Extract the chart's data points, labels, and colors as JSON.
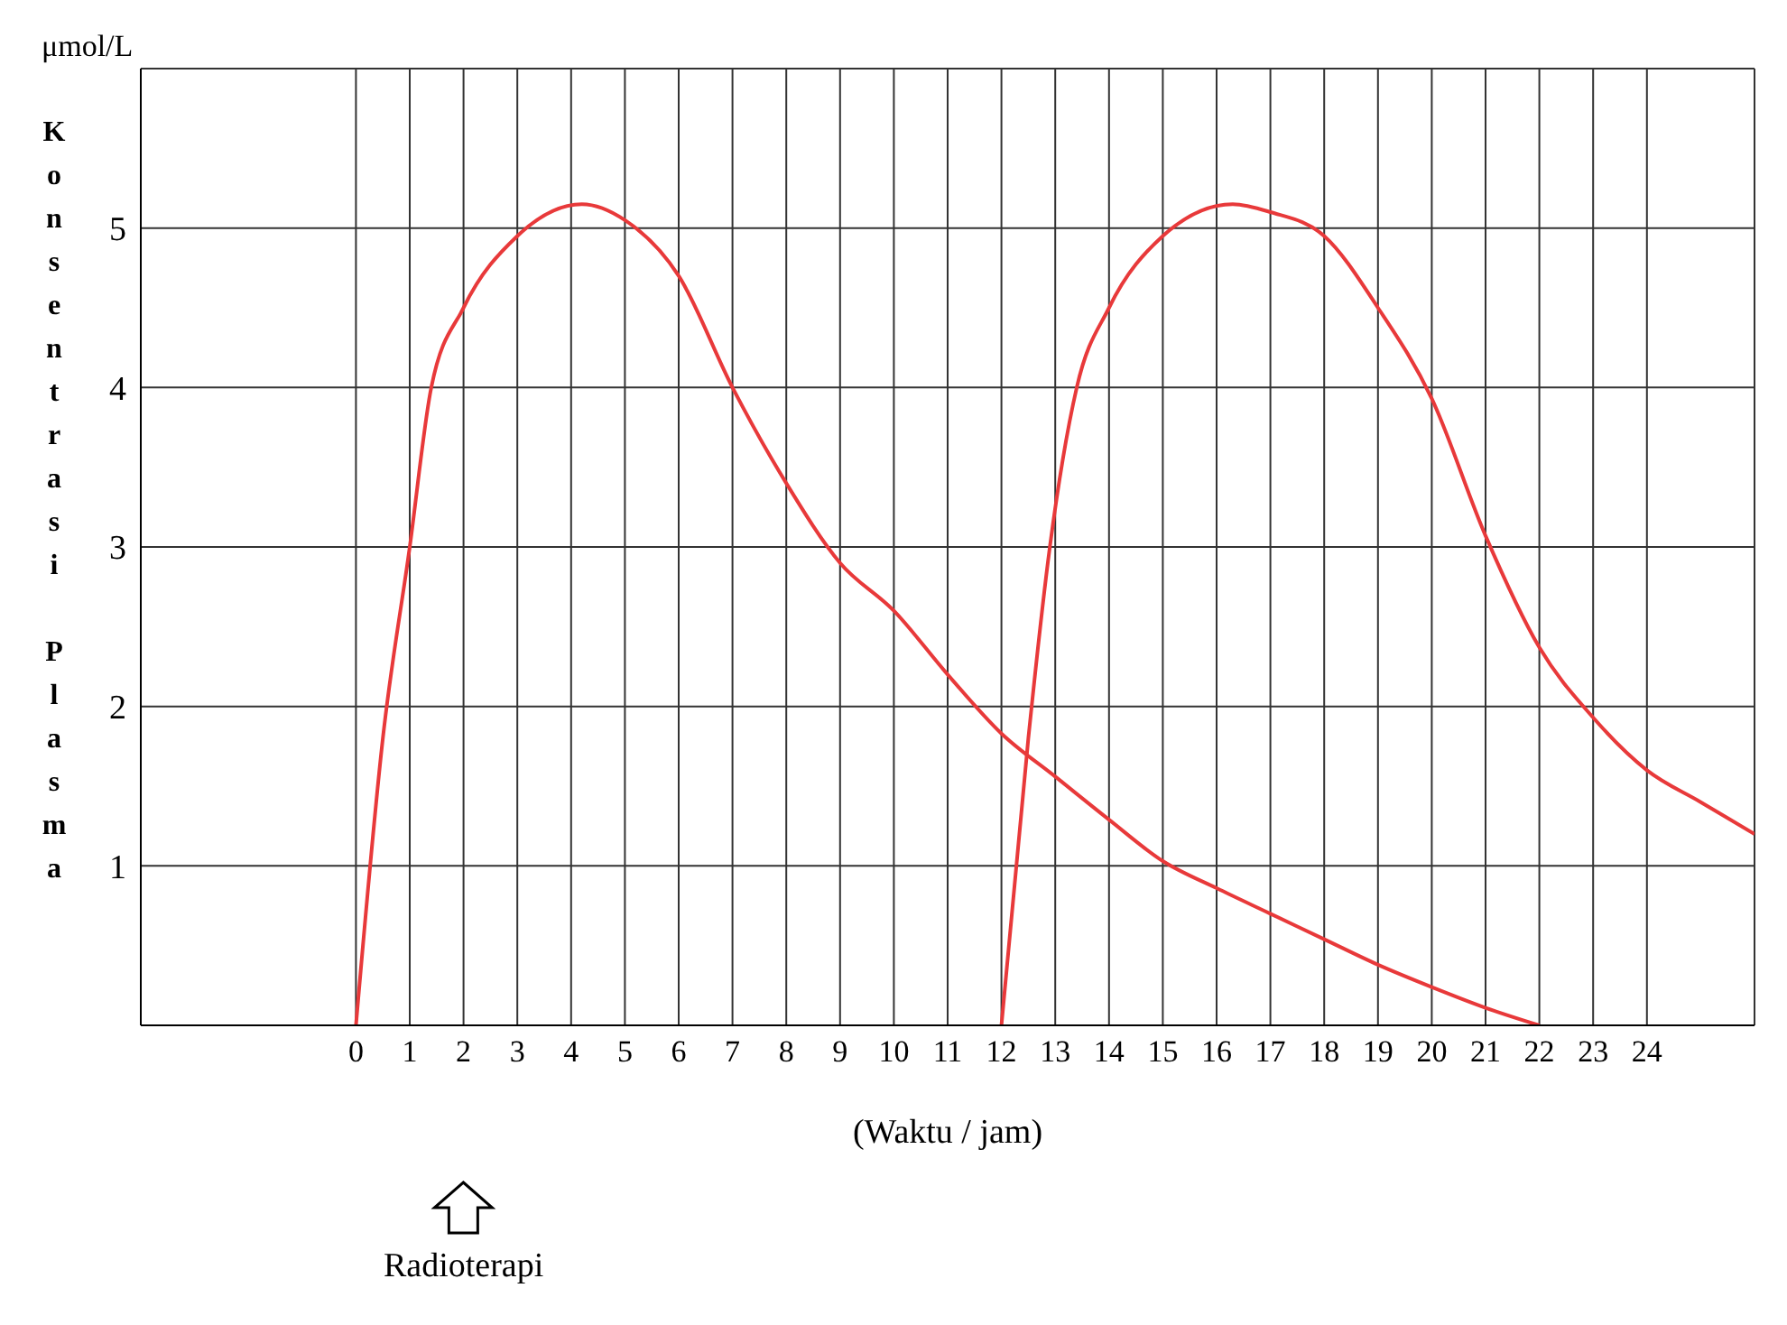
{
  "chart_data": {
    "type": "line",
    "ylabel": "Konsentrasi Plasma",
    "xlabel": "(Waktu / jam)",
    "annotations": [
      "μmol/L",
      "Radioterapi"
    ],
    "xlim": [
      -4,
      26
    ],
    "xticks": [
      0,
      1,
      2,
      3,
      4,
      5,
      6,
      7,
      8,
      9,
      10,
      11,
      12,
      13,
      14,
      15,
      16,
      17,
      18,
      19,
      20,
      21,
      22,
      23,
      24
    ],
    "ylim": [
      0,
      6
    ],
    "yticks": [
      1,
      2,
      3,
      4,
      5
    ],
    "grid": true,
    "marker": "none",
    "line_style": "solid",
    "series": [
      {
        "color": "#e8393a",
        "x": [
          0,
          0.5,
          1,
          1.4,
          2,
          3,
          4.2,
          5,
          6,
          7,
          8,
          9,
          10,
          11,
          12,
          13,
          14,
          15,
          16,
          17,
          18,
          19,
          20,
          21,
          22
        ],
        "values": [
          0,
          1.8,
          3,
          4,
          4.5,
          4.95,
          5.15,
          5.05,
          4.7,
          4.0,
          3.4,
          2.9,
          2.6,
          2.2,
          1.83,
          1.56,
          1.29,
          1.03,
          0.86,
          0.7,
          0.54,
          0.38,
          0.24,
          0.11,
          0
        ]
      },
      {
        "color": "#e8393a",
        "x": [
          12,
          12.5,
          12.9,
          13.4,
          14,
          15,
          16.3,
          17,
          18,
          19,
          20,
          21,
          22,
          23,
          24,
          25,
          26
        ],
        "values": [
          0,
          1.8,
          3,
          4,
          4.5,
          4.95,
          5.15,
          5.1,
          4.95,
          4.5,
          3.93,
          3.07,
          2.37,
          1.93,
          1.6,
          1.4,
          1.2
        ]
      }
    ]
  }
}
